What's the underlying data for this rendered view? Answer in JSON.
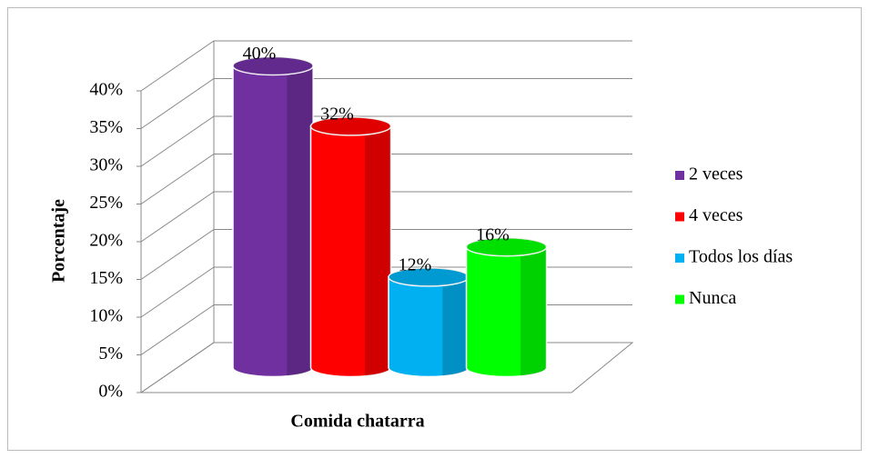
{
  "chart_data": {
    "type": "bar3d",
    "y_label": "Porcentaje",
    "categories": [
      "Comida chatarra"
    ],
    "series": [
      {
        "name": "2 veces",
        "color": "#7030a0",
        "values": [
          40
        ],
        "value_labels": [
          "40%"
        ]
      },
      {
        "name": "4 veces",
        "color": "#ff0000",
        "values": [
          32
        ],
        "value_labels": [
          "32%"
        ]
      },
      {
        "name": "Todos los días",
        "color": "#00b0f0",
        "values": [
          12
        ],
        "value_labels": [
          "12%"
        ]
      },
      {
        "name": "Nunca",
        "color": "#00ff00",
        "values": [
          16
        ],
        "value_labels": [
          "16%"
        ]
      }
    ],
    "ylim": [
      0,
      40
    ],
    "yticks": [
      {
        "value": 0,
        "label": "0%"
      },
      {
        "value": 5,
        "label": "5%"
      },
      {
        "value": 10,
        "label": "10%"
      },
      {
        "value": 15,
        "label": "15%"
      },
      {
        "value": 20,
        "label": "20%"
      },
      {
        "value": 25,
        "label": "25%"
      },
      {
        "value": 30,
        "label": "30%"
      },
      {
        "value": 35,
        "label": "35%"
      },
      {
        "value": 40,
        "label": "40%"
      }
    ],
    "grid": true,
    "legend": "right"
  }
}
